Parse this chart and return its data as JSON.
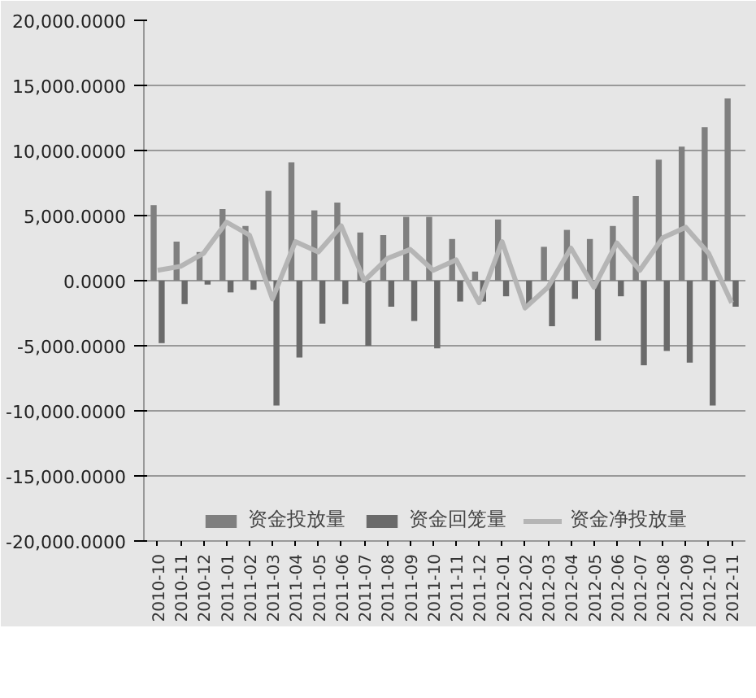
{
  "chart_data": {
    "type": "bar",
    "categories": [
      "2010-10",
      "2010-11",
      "2010-12",
      "2011-01",
      "2011-02",
      "2011-03",
      "2011-04",
      "2011-05",
      "2011-06",
      "2011-07",
      "2011-08",
      "2011-09",
      "2011-10",
      "2011-11",
      "2011-12",
      "2012-01",
      "2012-02",
      "2012-03",
      "2012-04",
      "2012-05",
      "2012-06",
      "2012-07",
      "2012-08",
      "2012-09",
      "2012-10",
      "2012-11"
    ],
    "series": [
      {
        "name": "资金投放量",
        "color": "#7f7f7f",
        "values": [
          5800,
          3000,
          2200,
          5500,
          4200,
          6900,
          9100,
          5400,
          6000,
          3700,
          3500,
          4900,
          4900,
          3200,
          700,
          4700,
          0,
          2600,
          3900,
          3200,
          4200,
          6500,
          9300,
          10300,
          11800,
          14000
        ]
      },
      {
        "name": "资金回笼量",
        "color": "#6a6a6a",
        "values": [
          -4800,
          -1800,
          -300,
          -900,
          -700,
          -9600,
          -5900,
          -3300,
          -1800,
          -5000,
          -2000,
          -3100,
          -5200,
          -1600,
          -1600,
          -1200,
          -1800,
          -3500,
          -1400,
          -4600,
          -1200,
          -6500,
          -5400,
          -6300,
          -9600,
          -2000
        ]
      },
      {
        "name": "资金净投放量",
        "type": "line",
        "color": "#b5b5b5",
        "values": [
          800,
          1100,
          2100,
          4500,
          3500,
          -1400,
          3000,
          2200,
          4200,
          0,
          1700,
          2400,
          800,
          1600,
          -1700,
          3000,
          -2100,
          -500,
          2500,
          -500,
          2900,
          800,
          3300,
          4100,
          2100,
          -1700
        ]
      }
    ],
    "ylim": [
      -20000,
      20000
    ],
    "yticks": [
      {
        "value": -20000,
        "label": "-20,000.0000"
      },
      {
        "value": -15000,
        "label": "-15,000.0000"
      },
      {
        "value": -10000,
        "label": "-10,000.0000"
      },
      {
        "value": -5000,
        "label": "-5,000.0000"
      },
      {
        "value": 0,
        "label": "0.0000"
      },
      {
        "value": 5000,
        "label": "5,000.0000"
      },
      {
        "value": 10000,
        "label": "10,000.0000"
      },
      {
        "value": 15000,
        "label": "15,000.0000"
      },
      {
        "value": 20000,
        "label": "20,000.0000"
      }
    ],
    "grid": "y",
    "legend": "bottom",
    "marker": "none",
    "line_style": "solid"
  }
}
